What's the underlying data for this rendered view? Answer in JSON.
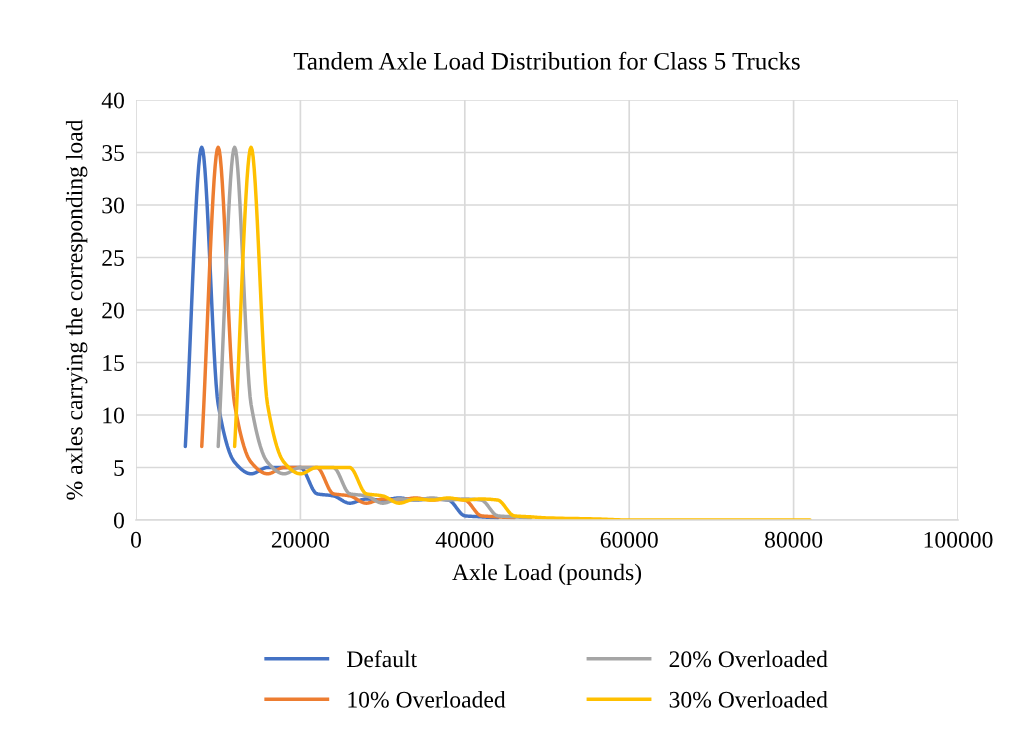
{
  "chart_data": {
    "type": "line",
    "title": "Tandem Axle Load Distribution for Class 5 Trucks",
    "xlabel": "Axle Load (pounds)",
    "ylabel": "% axles carrying the corresponding load",
    "xlim": [
      0,
      100000
    ],
    "xticks": [
      0,
      20000,
      40000,
      60000,
      80000,
      100000
    ],
    "ylim": [
      0,
      40
    ],
    "yticks": [
      0,
      5,
      10,
      15,
      20,
      25,
      30,
      35,
      40
    ],
    "grid": true,
    "legend": "bottom",
    "marker": "none",
    "line_style": "solid",
    "series": [
      {
        "name": "Default",
        "color": "#4472c4",
        "x": [
          6000,
          8000,
          10000,
          12000,
          14000,
          16000,
          18000,
          20000,
          22000,
          24000,
          26000,
          28000,
          30000,
          32000,
          34000,
          36000,
          38000,
          40000,
          42000,
          44000
        ],
        "values": [
          7,
          35.5,
          11,
          5.5,
          4.4,
          5,
          5,
          5,
          2.5,
          2.3,
          1.6,
          2,
          1.9,
          2.1,
          1.9,
          2,
          1.9,
          0.4,
          0.3,
          0.2
        ]
      },
      {
        "name": "10% Overloaded",
        "color": "#ed7d31",
        "x": [
          8000,
          10000,
          12000,
          14000,
          16000,
          18000,
          20000,
          22000,
          24000,
          26000,
          28000,
          30000,
          32000,
          34000,
          36000,
          38000,
          40000,
          42000,
          44000,
          46000
        ],
        "values": [
          7,
          35.5,
          11,
          5.5,
          4.4,
          5,
          5,
          5,
          2.5,
          2.3,
          1.6,
          2,
          1.9,
          2.1,
          1.9,
          2,
          1.9,
          0.4,
          0.3,
          0.2
        ]
      },
      {
        "name": "20% Overloaded",
        "color": "#a5a5a5",
        "x": [
          10000,
          12000,
          14000,
          16000,
          18000,
          20000,
          22000,
          24000,
          26000,
          28000,
          30000,
          32000,
          34000,
          36000,
          38000,
          40000,
          42000,
          44000,
          46000,
          48000
        ],
        "values": [
          7,
          35.5,
          11,
          5.5,
          4.4,
          5,
          5,
          5,
          2.5,
          2.3,
          1.6,
          2,
          1.9,
          2.1,
          1.9,
          2,
          1.9,
          0.4,
          0.3,
          0.2
        ]
      },
      {
        "name": "30% Overloaded",
        "color": "#ffc000",
        "x": [
          12000,
          14000,
          16000,
          18000,
          20000,
          22000,
          24000,
          26000,
          28000,
          30000,
          32000,
          34000,
          36000,
          38000,
          40000,
          42000,
          44000,
          46000,
          48000,
          50000,
          56000,
          60000,
          82000
        ],
        "values": [
          7,
          35.5,
          11,
          5.5,
          4.4,
          5,
          5,
          5,
          2.5,
          2.3,
          1.6,
          2,
          1.9,
          2.1,
          1.9,
          2,
          1.9,
          0.4,
          0.3,
          0.2,
          0.1,
          0,
          0
        ]
      }
    ]
  }
}
